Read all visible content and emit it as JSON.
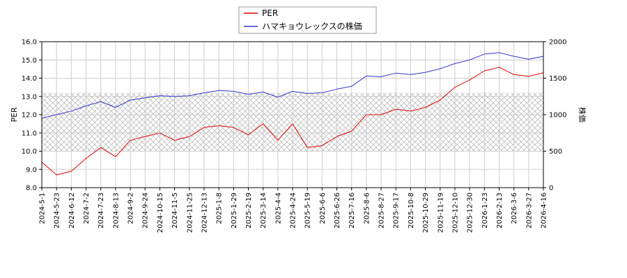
{
  "chart_data": {
    "type": "line",
    "legend": {
      "placement": "top-center",
      "entries": [
        {
          "label": "PER",
          "color": "#dd0000"
        },
        {
          "label": "ハマキョウレックスの株価",
          "color": "#3333cc"
        }
      ]
    },
    "left_axis": {
      "label": "PER",
      "ylim": [
        8.0,
        16.0
      ],
      "ticks": [
        "8.0",
        "9.0",
        "10.0",
        "11.0",
        "12.0",
        "13.0",
        "14.0",
        "15.0",
        "16.0"
      ]
    },
    "right_axis": {
      "label": "株価",
      "ylim": [
        0,
        2000
      ],
      "ticks": [
        "0",
        "500",
        "1000",
        "1500",
        "2000"
      ]
    },
    "band": {
      "from": 10.0,
      "to": 13.2,
      "pattern": "crosshatch"
    },
    "grid": true,
    "x": [
      "2024-5-1",
      "2024-5-23",
      "2024-6-12",
      "2024-7-2",
      "2024-7-23",
      "2024-8-13",
      "2024-9-2",
      "2024-9-24",
      "2024-10-15",
      "2024-11-5",
      "2024-11-25",
      "2024-12-13",
      "2025-1-8",
      "2025-1-29",
      "2025-2-19",
      "2025-3-14",
      "2025-4-4",
      "2025-4-24",
      "2025-5-19",
      "2025-6-6",
      "2025-6-26",
      "2025-7-16",
      "2025-8-6",
      "2025-8-27",
      "2025-9-17",
      "2025-10-8",
      "2025-10-29",
      "2025-11-19",
      "2025-12-10",
      "2025-12-30",
      "2026-1-23",
      "2026-2-13",
      "2026-3-6",
      "2026-3-27",
      "2026-4-16"
    ],
    "series": [
      {
        "name": "PER",
        "axis": "left",
        "color": "#dd0000",
        "values": [
          9.4,
          8.7,
          8.9,
          9.6,
          10.2,
          9.7,
          10.6,
          10.8,
          11.0,
          10.6,
          10.8,
          11.3,
          11.4,
          11.3,
          10.9,
          11.5,
          10.6,
          11.5,
          10.2,
          10.3,
          10.8,
          11.1,
          12.0,
          12.0,
          12.3,
          12.2,
          12.4,
          12.8,
          13.5,
          13.9,
          14.4,
          14.6,
          14.2,
          14.1,
          14.3
        ]
      },
      {
        "name": "ハマキョウレックスの株価",
        "axis": "right",
        "color": "#3333cc",
        "values": [
          950,
          1000,
          1050,
          1120,
          1180,
          1100,
          1200,
          1230,
          1260,
          1250,
          1260,
          1300,
          1330,
          1320,
          1280,
          1310,
          1240,
          1320,
          1290,
          1300,
          1350,
          1390,
          1530,
          1520,
          1570,
          1550,
          1580,
          1630,
          1700,
          1750,
          1830,
          1850,
          1800,
          1760,
          1800
        ]
      }
    ]
  }
}
